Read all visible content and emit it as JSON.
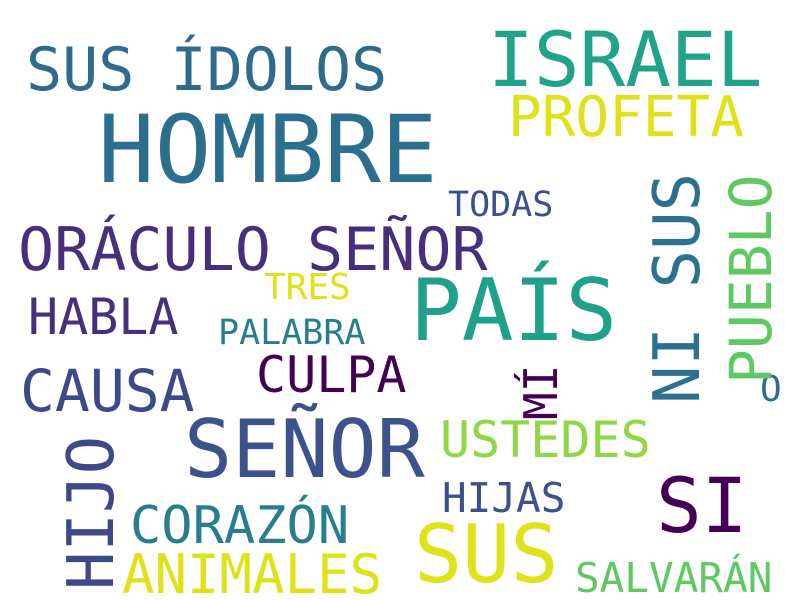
{
  "words": {
    "hombre": {
      "text": "HOMBRE",
      "color": "#2c6e8e"
    },
    "israel": {
      "text": "ISRAEL",
      "color": "#20a386"
    },
    "sus_idolos": {
      "text": "SUS ÍDOLOS",
      "color": "#2f6b8e"
    },
    "profeta": {
      "text": "PROFETA",
      "color": "#dde318"
    },
    "oraculo": {
      "text": "ORÁCULO SEÑOR",
      "color": "#472f7d"
    },
    "todas": {
      "text": "TODAS",
      "color": "#3b518b"
    },
    "pais": {
      "text": "PAÍS",
      "color": "#1fa088"
    },
    "tres": {
      "text": "TRES",
      "color": "#dde318"
    },
    "habla": {
      "text": "HABLA",
      "color": "#472f7d"
    },
    "palabra": {
      "text": "PALABRA",
      "color": "#277f8e"
    },
    "culpa": {
      "text": "CULPA",
      "color": "#440154"
    },
    "causa": {
      "text": "CAUSA",
      "color": "#3e4989"
    },
    "senor": {
      "text": "SEÑOR",
      "color": "#3b528b"
    },
    "ustedes": {
      "text": "USTEDES",
      "color": "#8fd744"
    },
    "hijas": {
      "text": "HIJAS",
      "color": "#3b518b"
    },
    "si": {
      "text": "SI",
      "color": "#440154"
    },
    "corazon": {
      "text": "CORAZÓN",
      "color": "#287d8e"
    },
    "sus": {
      "text": "SUS",
      "color": "#dde318"
    },
    "animales": {
      "text": "ANIMALES",
      "color": "#dde318"
    },
    "salvaran": {
      "text": "SALVARÁN",
      "color": "#5ec962"
    },
    "o": {
      "text": "O",
      "color": "#2f6b8e"
    },
    "ni_sus": {
      "text": "NI SUS",
      "color": "#2c728e"
    },
    "pueblo": {
      "text": "PUEBLO",
      "color": "#5ec962"
    },
    "mi": {
      "text": "MÍ",
      "color": "#440154"
    },
    "hijo": {
      "text": "HIJO",
      "color": "#3e4989"
    }
  }
}
